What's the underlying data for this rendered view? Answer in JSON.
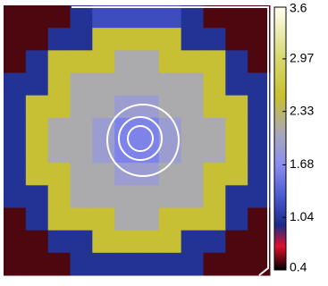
{
  "chart_data": {
    "type": "heatmap",
    "z": [
      [
        0.5,
        0.5,
        0.5,
        1.0,
        1.2,
        1.2,
        1.2,
        1.2,
        1.0,
        0.5,
        0.5,
        0.5
      ],
      [
        0.5,
        0.5,
        1.0,
        1.0,
        2.5,
        2.5,
        2.5,
        2.5,
        1.0,
        1.0,
        0.5,
        0.5
      ],
      [
        0.5,
        1.0,
        2.5,
        2.5,
        2.5,
        2.1,
        2.1,
        2.5,
        2.5,
        2.5,
        1.0,
        0.5
      ],
      [
        1.0,
        1.0,
        2.5,
        2.1,
        2.1,
        2.1,
        2.1,
        2.1,
        2.1,
        2.5,
        1.0,
        1.0
      ],
      [
        1.0,
        2.5,
        2.5,
        2.1,
        2.1,
        1.9,
        1.9,
        2.1,
        2.1,
        2.5,
        2.5,
        1.0
      ],
      [
        1.0,
        2.5,
        2.1,
        2.1,
        1.9,
        1.6,
        1.6,
        1.9,
        2.1,
        2.1,
        2.5,
        1.0
      ],
      [
        1.0,
        2.5,
        2.1,
        2.1,
        1.9,
        1.6,
        1.6,
        1.9,
        2.1,
        2.1,
        2.5,
        1.0
      ],
      [
        1.0,
        2.5,
        2.5,
        2.1,
        2.1,
        1.9,
        1.9,
        2.1,
        2.1,
        2.5,
        2.5,
        1.0
      ],
      [
        1.0,
        1.0,
        2.5,
        2.1,
        2.1,
        2.1,
        2.1,
        2.1,
        2.1,
        2.5,
        1.0,
        1.0
      ],
      [
        0.5,
        1.0,
        2.5,
        2.5,
        2.5,
        2.1,
        2.1,
        2.5,
        2.5,
        2.5,
        1.0,
        0.5
      ],
      [
        0.5,
        0.5,
        1.0,
        1.0,
        2.5,
        2.5,
        2.5,
        2.5,
        1.0,
        1.0,
        0.5,
        0.5
      ],
      [
        0.5,
        0.5,
        0.5,
        1.0,
        1.0,
        1.0,
        1.0,
        1.0,
        1.0,
        0.5,
        0.5,
        0.5
      ]
    ],
    "zlim": [
      0.4,
      3.6
    ],
    "zticks": [
      0.4,
      1.04,
      1.68,
      2.33,
      2.97,
      3.6
    ]
  }
}
